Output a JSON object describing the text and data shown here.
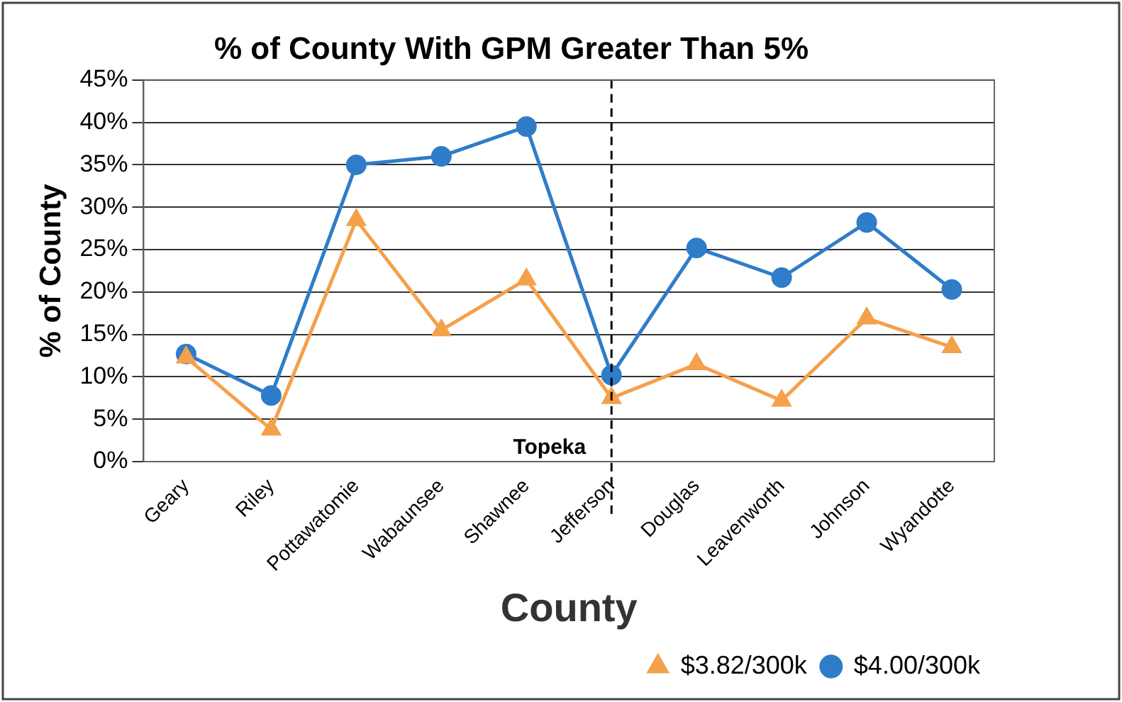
{
  "chart_data": {
    "type": "line",
    "title": "% of County With GPM Greater Than 5%",
    "xlabel": "County",
    "ylabel": "% of County",
    "categories": [
      "Geary",
      "Riley",
      "Pottawatomie",
      "Wabaunsee",
      "Shawnee",
      "Jefferson",
      "Douglas",
      "Leavenworth",
      "Johnson",
      "Wyandotte"
    ],
    "series": [
      {
        "name": "$3.82/300k",
        "color": "#f5a04a",
        "marker": "triangle",
        "values": [
          12.3,
          3.8,
          28.5,
          15.5,
          21.5,
          7.5,
          11.5,
          7.2,
          16.9,
          13.5
        ]
      },
      {
        "name": "$4.00/300k",
        "color": "#2f7cc9",
        "marker": "circle",
        "values": [
          12.7,
          7.8,
          35,
          36,
          39.5,
          10.2,
          25.2,
          21.7,
          28.2,
          20.3
        ]
      }
    ],
    "ylim": [
      0,
      45
    ],
    "yticks": [
      {
        "value": 0,
        "label": "0%"
      },
      {
        "value": 5,
        "label": "5%"
      },
      {
        "value": 10,
        "label": "10%"
      },
      {
        "value": 15,
        "label": "15%"
      },
      {
        "value": 20,
        "label": "20%"
      },
      {
        "value": 25,
        "label": "25%"
      },
      {
        "value": 30,
        "label": "30%"
      },
      {
        "value": 35,
        "label": "35%"
      },
      {
        "value": 40,
        "label": "40%"
      },
      {
        "value": 45,
        "label": "45%"
      }
    ],
    "ref_lines": [
      {
        "axis": "x",
        "value": "Jefferson",
        "label": "Topeka",
        "color": "#000000",
        "line_style": "dashed"
      }
    ],
    "grid": "y",
    "legend": "bottom right",
    "line_style": "solid"
  }
}
